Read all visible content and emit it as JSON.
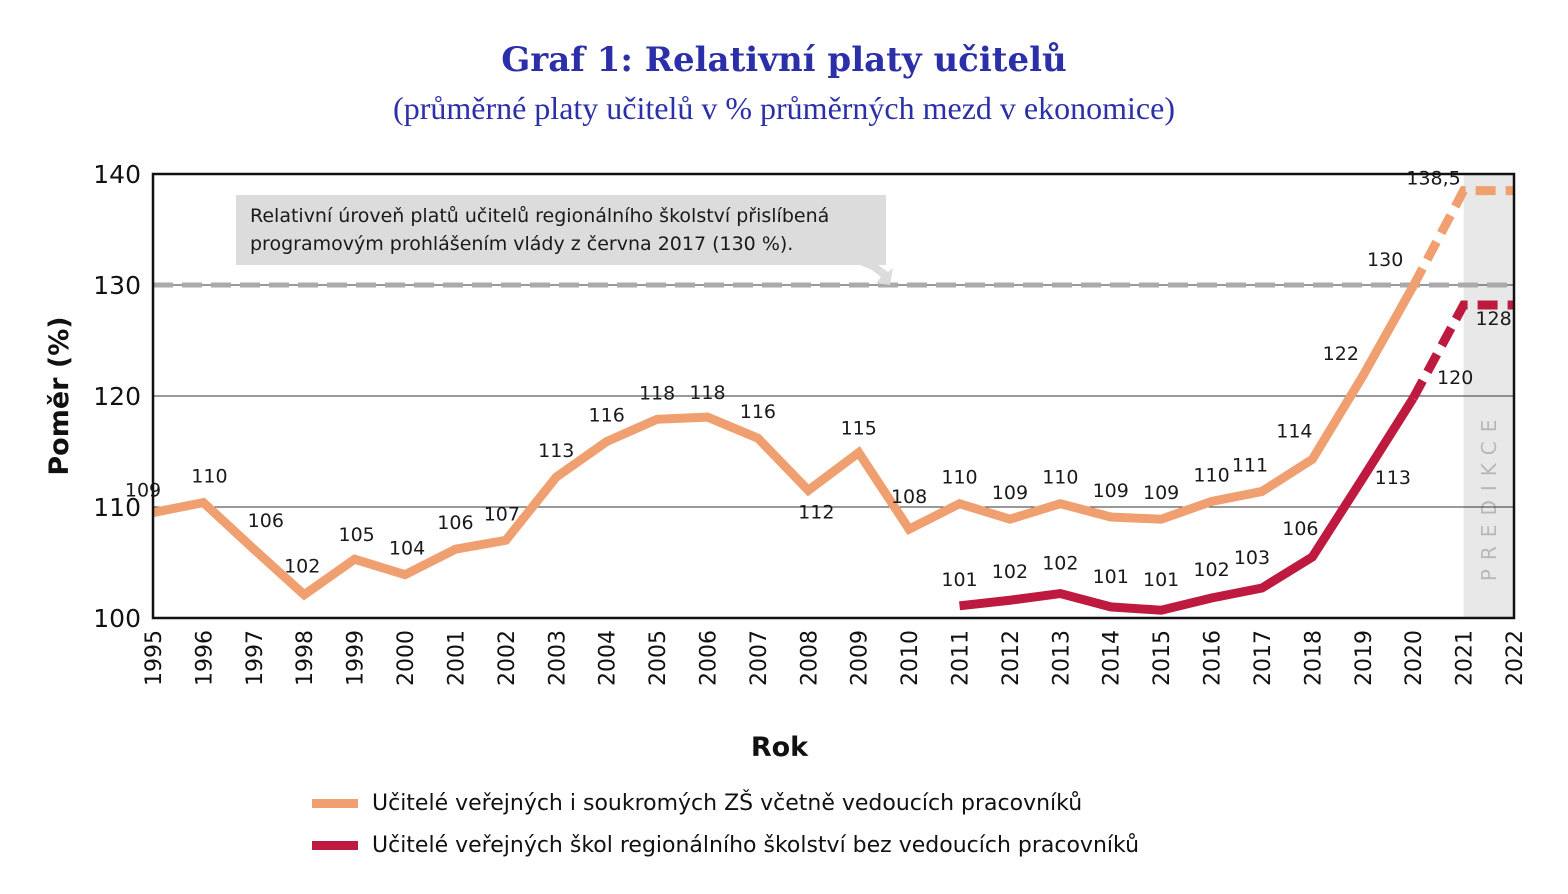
{
  "chart_data": {
    "type": "line",
    "title": "Graf 1: Relativní platy učitelů",
    "subtitle": "(průměrné platy učitelů v % průměrných mezd v ekonomice)",
    "xlabel": "Rok",
    "ylabel": "Poměr (%)",
    "ylim": [
      100,
      140
    ],
    "yticks": [
      "100",
      "110",
      "120",
      "130",
      "140"
    ],
    "x": [
      "1995",
      "1996",
      "1997",
      "1998",
      "1999",
      "2000",
      "2001",
      "2002",
      "2003",
      "2004",
      "2005",
      "2006",
      "2007",
      "2008",
      "2009",
      "2010",
      "2011",
      "2012",
      "2013",
      "2014",
      "2015",
      "2016",
      "2017",
      "2018",
      "2019",
      "2020",
      "2021",
      "2022"
    ],
    "grid": true,
    "reference_line": {
      "value": 130,
      "style": "dashed",
      "annotation": "Relativní úroveň platů učitelů regionálního školství přislíbená programovým prohlášením vlády z června 2017 (130 %).",
      "annotation_lines": [
        "Relativní úroveň platů učitelů regionálního školství přislíbená",
        "programovým prohlášením vlády z června 2017 (130 %)."
      ]
    },
    "prediction_band": {
      "from": "2021",
      "to": "2022",
      "label": "PREDIKCE"
    },
    "series": [
      {
        "name": "Učitelé veřejných i soukromých ZŠ včetně vedoucích pracovníků",
        "color": "#f0a070",
        "values": [
          109.5,
          110.4,
          106.2,
          102.1,
          105.3,
          103.9,
          106.2,
          107.0,
          112.7,
          115.9,
          117.9,
          118.1,
          116.2,
          111.5,
          114.9,
          108.0,
          110.3,
          108.9,
          110.3,
          109.1,
          108.9,
          110.5,
          111.4,
          114.3,
          121.8,
          129.9,
          138.5,
          138.5
        ],
        "labels": [
          "109",
          "110",
          "106",
          "102",
          "105",
          "104",
          "106",
          "107",
          "113",
          "116",
          "118",
          "118",
          "116",
          "112",
          "115",
          "108",
          "110",
          "109",
          "110",
          "109",
          "109",
          "110",
          "111",
          "114",
          "122",
          "130",
          "138,5",
          ""
        ],
        "dashed_from": "2020"
      },
      {
        "name": "Učitelé veřejných škol regionálního školství bez vedoucích pracovníků",
        "color": "#be1a3f",
        "values": [
          null,
          null,
          null,
          null,
          null,
          null,
          null,
          null,
          null,
          null,
          null,
          null,
          null,
          null,
          null,
          null,
          101.1,
          101.6,
          102.2,
          101.0,
          100.7,
          101.8,
          102.7,
          105.5,
          112.6,
          119.8,
          128.2,
          128.2
        ],
        "labels": [
          "",
          "",
          "",
          "",
          "",
          "",
          "",
          "",
          "",
          "",
          "",
          "",
          "",
          "",
          "",
          "",
          "101",
          "102",
          "102",
          "101",
          "101",
          "102",
          "103",
          "106",
          "113",
          "120",
          "128",
          ""
        ],
        "dashed_from": "2020"
      }
    ],
    "legend": "bottom"
  }
}
